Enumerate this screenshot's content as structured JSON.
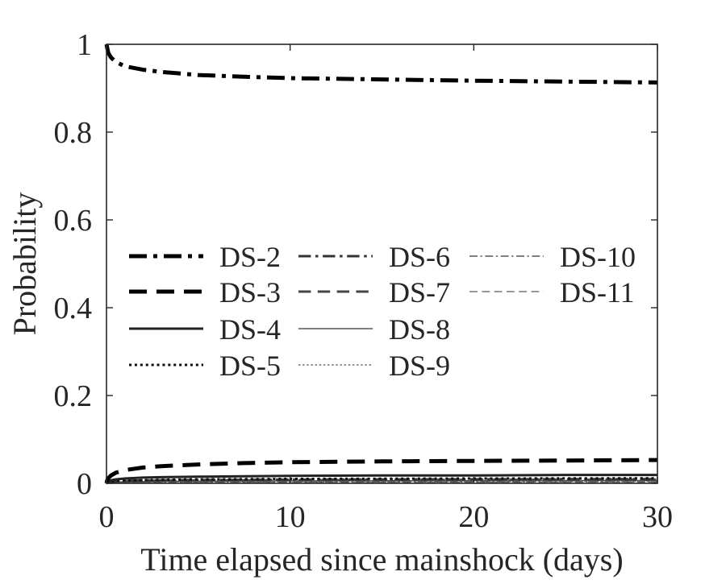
{
  "chart_data": {
    "type": "line",
    "title": "",
    "xlabel": "Time elapsed since mainshock (days)",
    "ylabel": "Probability",
    "xlim": [
      0,
      30
    ],
    "ylim": [
      0,
      1
    ],
    "xticks": [
      0,
      10,
      20,
      30
    ],
    "xtick_labels": [
      "0",
      "10",
      "20",
      "30"
    ],
    "yticks": [
      0,
      0.2,
      0.4,
      0.6,
      0.8,
      1
    ],
    "ytick_labels": [
      "0",
      "0.2",
      "0.4",
      "0.6",
      "0.8",
      "1"
    ],
    "grid": false,
    "legend_position": "center-left",
    "legend_columns": 3,
    "x": [
      0,
      0.05,
      0.1,
      0.25,
      0.5,
      1,
      2,
      3,
      5,
      7.5,
      10,
      15,
      20,
      25,
      30
    ],
    "series": [
      {
        "name": "DS-2",
        "color": "#000000",
        "dash": "dashdot",
        "weight": "bold",
        "values": [
          1.0,
          0.99,
          0.98,
          0.97,
          0.96,
          0.95,
          0.942,
          0.937,
          0.93,
          0.926,
          0.923,
          0.92,
          0.917,
          0.915,
          0.913
        ]
      },
      {
        "name": "DS-3",
        "color": "#000000",
        "dash": "dash",
        "weight": "bold",
        "values": [
          0,
          0.008,
          0.012,
          0.018,
          0.024,
          0.03,
          0.036,
          0.039,
          0.043,
          0.046,
          0.048,
          0.05,
          0.051,
          0.052,
          0.053
        ]
      },
      {
        "name": "DS-4",
        "color": "#222222",
        "dash": "solid",
        "weight": "medium",
        "values": [
          0,
          0.003,
          0.005,
          0.007,
          0.009,
          0.011,
          0.013,
          0.014,
          0.015,
          0.016,
          0.017,
          0.018,
          0.018,
          0.019,
          0.019
        ]
      },
      {
        "name": "DS-5",
        "color": "#111111",
        "dash": "dot",
        "weight": "medium",
        "values": [
          0,
          0.002,
          0.003,
          0.004,
          0.005,
          0.006,
          0.007,
          0.008,
          0.009,
          0.0095,
          0.01,
          0.0105,
          0.011,
          0.0112,
          0.0115
        ]
      },
      {
        "name": "DS-6",
        "color": "#333333",
        "dash": "dashdot",
        "weight": "medium",
        "values": [
          0,
          0.002,
          0.003,
          0.004,
          0.005,
          0.006,
          0.0065,
          0.007,
          0.0075,
          0.008,
          0.0085,
          0.009,
          0.0092,
          0.0095,
          0.0098
        ]
      },
      {
        "name": "DS-7",
        "color": "#444444",
        "dash": "dash",
        "weight": "medium",
        "values": [
          0,
          0.001,
          0.002,
          0.003,
          0.004,
          0.005,
          0.0055,
          0.006,
          0.0065,
          0.007,
          0.0072,
          0.0075,
          0.0078,
          0.008,
          0.0082
        ]
      },
      {
        "name": "DS-8",
        "color": "#555555",
        "dash": "solid",
        "weight": "thin",
        "values": [
          0,
          0.001,
          0.0015,
          0.002,
          0.003,
          0.0035,
          0.004,
          0.0045,
          0.005,
          0.0052,
          0.0055,
          0.0058,
          0.006,
          0.0062,
          0.0064
        ]
      },
      {
        "name": "DS-9",
        "color": "#666666",
        "dash": "dot",
        "weight": "thin",
        "values": [
          0,
          0.0008,
          0.001,
          0.0015,
          0.002,
          0.0025,
          0.003,
          0.0033,
          0.0036,
          0.0038,
          0.004,
          0.0042,
          0.0044,
          0.0045,
          0.0046
        ]
      },
      {
        "name": "DS-10",
        "color": "#555555",
        "dash": "dashdot",
        "weight": "thin",
        "values": [
          0,
          0.0005,
          0.0008,
          0.001,
          0.0015,
          0.002,
          0.0022,
          0.0025,
          0.0027,
          0.0029,
          0.003,
          0.0032,
          0.0033,
          0.0034,
          0.0035
        ]
      },
      {
        "name": "DS-11",
        "color": "#777777",
        "dash": "dash",
        "weight": "thin",
        "values": [
          0,
          0.0004,
          0.0006,
          0.0008,
          0.001,
          0.0012,
          0.0014,
          0.0016,
          0.0018,
          0.0019,
          0.002,
          0.0021,
          0.0022,
          0.0023,
          0.0024
        ]
      }
    ]
  }
}
